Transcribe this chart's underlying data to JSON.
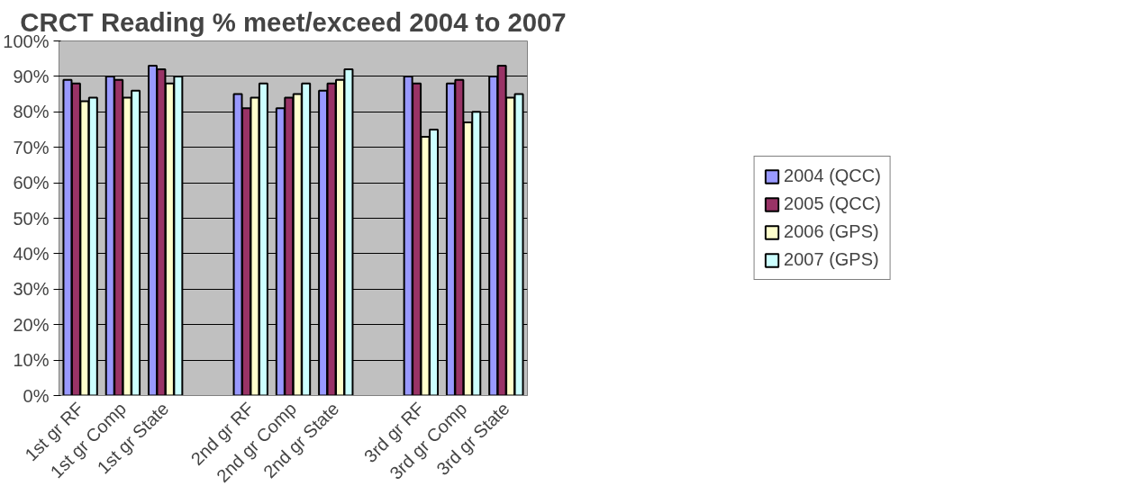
{
  "chart_data": {
    "type": "bar",
    "title": "CRCT Reading % meet/exceed 2004 to 2007",
    "categories": [
      "1st gr RF",
      "1st gr Comp",
      "1st gr State",
      null,
      "2nd gr RF",
      "2nd gr Comp",
      "2nd gr State",
      null,
      "3rd gr RF",
      "3rd gr Comp",
      "3rd gr State"
    ],
    "series": [
      {
        "name": "2004 (QCC)",
        "color": "#9999ff",
        "values": [
          89,
          90,
          93,
          null,
          85,
          81,
          86,
          null,
          90,
          88,
          90
        ]
      },
      {
        "name": "2005 (QCC)",
        "color": "#993366",
        "values": [
          88,
          89,
          92,
          null,
          81,
          84,
          88,
          null,
          88,
          89,
          93
        ]
      },
      {
        "name": "2006 (GPS)",
        "color": "#ffffcc",
        "values": [
          83,
          84,
          88,
          null,
          84,
          85,
          89,
          null,
          73,
          77,
          84
        ]
      },
      {
        "name": "2007 (GPS)",
        "color": "#ccffff",
        "values": [
          84,
          86,
          90,
          null,
          88,
          88,
          92,
          null,
          75,
          80,
          85
        ]
      }
    ],
    "ylim": [
      0,
      100
    ],
    "yticks": [
      {
        "value": 0,
        "label": "0%"
      },
      {
        "value": 10,
        "label": "10%"
      },
      {
        "value": 20,
        "label": "20%"
      },
      {
        "value": 30,
        "label": "30%"
      },
      {
        "value": 40,
        "label": "40%"
      },
      {
        "value": 50,
        "label": "50%"
      },
      {
        "value": 60,
        "label": "60%"
      },
      {
        "value": 70,
        "label": "70%"
      },
      {
        "value": 80,
        "label": "80%"
      },
      {
        "value": 90,
        "label": "90%"
      },
      {
        "value": 100,
        "label": "100%"
      }
    ],
    "grid": "y",
    "legend": "right"
  }
}
